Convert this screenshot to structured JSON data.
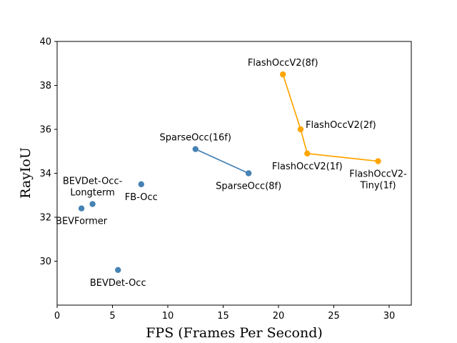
{
  "chart_data": {
    "type": "scatter",
    "xlabel": "FPS (Frames Per Second)",
    "ylabel": "RayIoU",
    "xlim": [
      0,
      32
    ],
    "ylim": [
      28,
      40
    ],
    "xticks": [
      0,
      5,
      10,
      15,
      20,
      25,
      30
    ],
    "yticks": [
      30,
      32,
      34,
      36,
      38,
      40
    ],
    "grid": false,
    "colors": {
      "blue": "#4682b4",
      "orange": "#ffa500"
    },
    "points": [
      {
        "label": [
          "BEVFormer"
        ],
        "x": 2.2,
        "y": 32.4,
        "color": "blue",
        "anchor": "below"
      },
      {
        "label": [
          "BEVDet-Occ-",
          "Longterm"
        ],
        "x": 3.2,
        "y": 32.6,
        "color": "blue",
        "anchor": "above"
      },
      {
        "label": [
          "BEVDet-Occ"
        ],
        "x": 5.5,
        "y": 29.6,
        "color": "blue",
        "anchor": "below"
      },
      {
        "label": [
          "FB-Occ"
        ],
        "x": 7.6,
        "y": 33.5,
        "color": "blue",
        "anchor": "below"
      }
    ],
    "series": [
      {
        "color": "blue",
        "points": [
          {
            "label": [
              "SparseOcc(16f)"
            ],
            "x": 12.5,
            "y": 35.1,
            "anchor": "above"
          },
          {
            "label": [
              "SparseOcc(8f)"
            ],
            "x": 17.3,
            "y": 34.0,
            "anchor": "below"
          }
        ]
      },
      {
        "color": "orange",
        "points": [
          {
            "label": [
              "FlashOccV2(8f)"
            ],
            "x": 20.4,
            "y": 38.5,
            "anchor": "above"
          },
          {
            "label": [
              "FlashOccV2(2f)"
            ],
            "x": 22.0,
            "y": 36.0,
            "anchor": "right"
          },
          {
            "label": [
              "FlashOccV2(1f)"
            ],
            "x": 22.6,
            "y": 34.9,
            "anchor": "below"
          },
          {
            "label": [
              "FlashOccV2-",
              "Tiny(1f)"
            ],
            "x": 29.0,
            "y": 34.55,
            "anchor": "below"
          }
        ]
      }
    ]
  }
}
